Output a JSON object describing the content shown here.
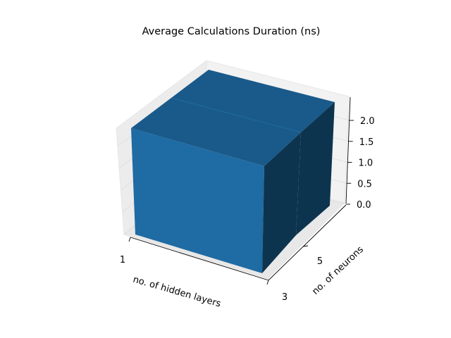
{
  "chart_data": {
    "type": "bar3d",
    "title": "Average Calculations Duration (ns)",
    "xlabel": "no. of hidden layers",
    "ylabel": "no. of neurons",
    "zlabel": "",
    "x_tick_labels": [
      "1",
      "3"
    ],
    "y_tick_labels": [
      "5"
    ],
    "z_ticks": [
      0.0,
      0.5,
      1.0,
      1.5,
      2.0
    ],
    "z_tick_labels": [
      "0.0",
      "0.5",
      "1.0",
      "1.5",
      "2.0"
    ],
    "zlim": [
      0,
      2.4
    ],
    "bars": [
      {
        "x": "1",
        "y": "5",
        "value": 2.3
      },
      {
        "x": "3",
        "y": "5",
        "value": 2.3
      }
    ],
    "colors": {
      "top": "#1a5a8a",
      "front": "#1f6ba3",
      "side": "#0d344f",
      "pane": "#f2f2f2"
    }
  }
}
